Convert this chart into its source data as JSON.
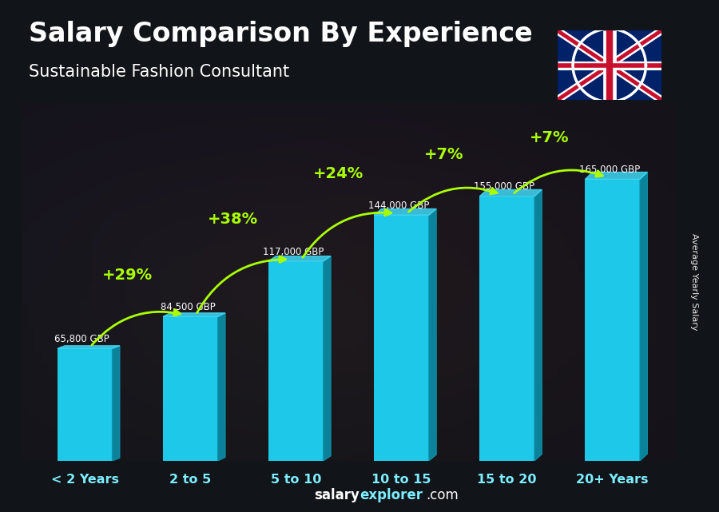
{
  "title": "Salary Comparison By Experience",
  "subtitle": "Sustainable Fashion Consultant",
  "categories": [
    "< 2 Years",
    "2 to 5",
    "5 to 10",
    "10 to 15",
    "15 to 20",
    "20+ Years"
  ],
  "values": [
    65800,
    84500,
    117000,
    144000,
    155000,
    165000
  ],
  "value_labels": [
    "65,800 GBP",
    "84,500 GBP",
    "117,000 GBP",
    "144,000 GBP",
    "155,000 GBP",
    "165,000 GBP"
  ],
  "pct_labels": [
    "+29%",
    "+38%",
    "+24%",
    "+7%",
    "+7%"
  ],
  "bar_color_main": "#1EC8E8",
  "bar_color_dark": "#0A8FA8",
  "pct_color": "#AAFF00",
  "label_color": "#FFFFFF",
  "cat_label_color": "#7DEEFF",
  "title_color": "#FFFFFF",
  "subtitle_color": "#FFFFFF",
  "bg_dark": "#111418",
  "bg_mid": "#2a2010",
  "ylabel": "Average Yearly Salary",
  "footer_salary": "salary",
  "footer_explorer": "explorer",
  "footer_com": ".com",
  "footer_color_white": "#FFFFFF",
  "footer_color_cyan": "#7DEEFF",
  "ylim": [
    0,
    210000
  ],
  "bar_width": 0.52
}
